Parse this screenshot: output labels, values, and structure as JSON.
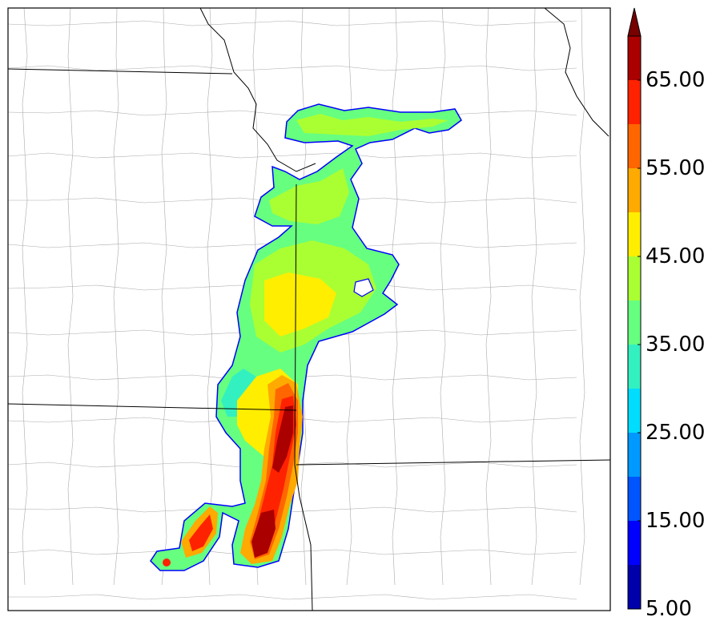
{
  "colorbar": {
    "levels": [
      5,
      10,
      15,
      20,
      25,
      30,
      35,
      40,
      45,
      50,
      55,
      60,
      65,
      70
    ],
    "colors": [
      "#0000aa",
      "#0000ff",
      "#0055ff",
      "#0099ff",
      "#00ddff",
      "#33f0c0",
      "#66ff80",
      "#aaff33",
      "#ffee00",
      "#ffaa00",
      "#ff6600",
      "#ff2200",
      "#aa0000"
    ],
    "extend_color": "#770000",
    "labels": [
      "5.00",
      "15.00",
      "25.00",
      "35.00",
      "45.00",
      "55.00",
      "65.00"
    ]
  },
  "map": {
    "background": "#ffffff",
    "state_border_color": "#000000",
    "county_border_color": "#999999"
  }
}
